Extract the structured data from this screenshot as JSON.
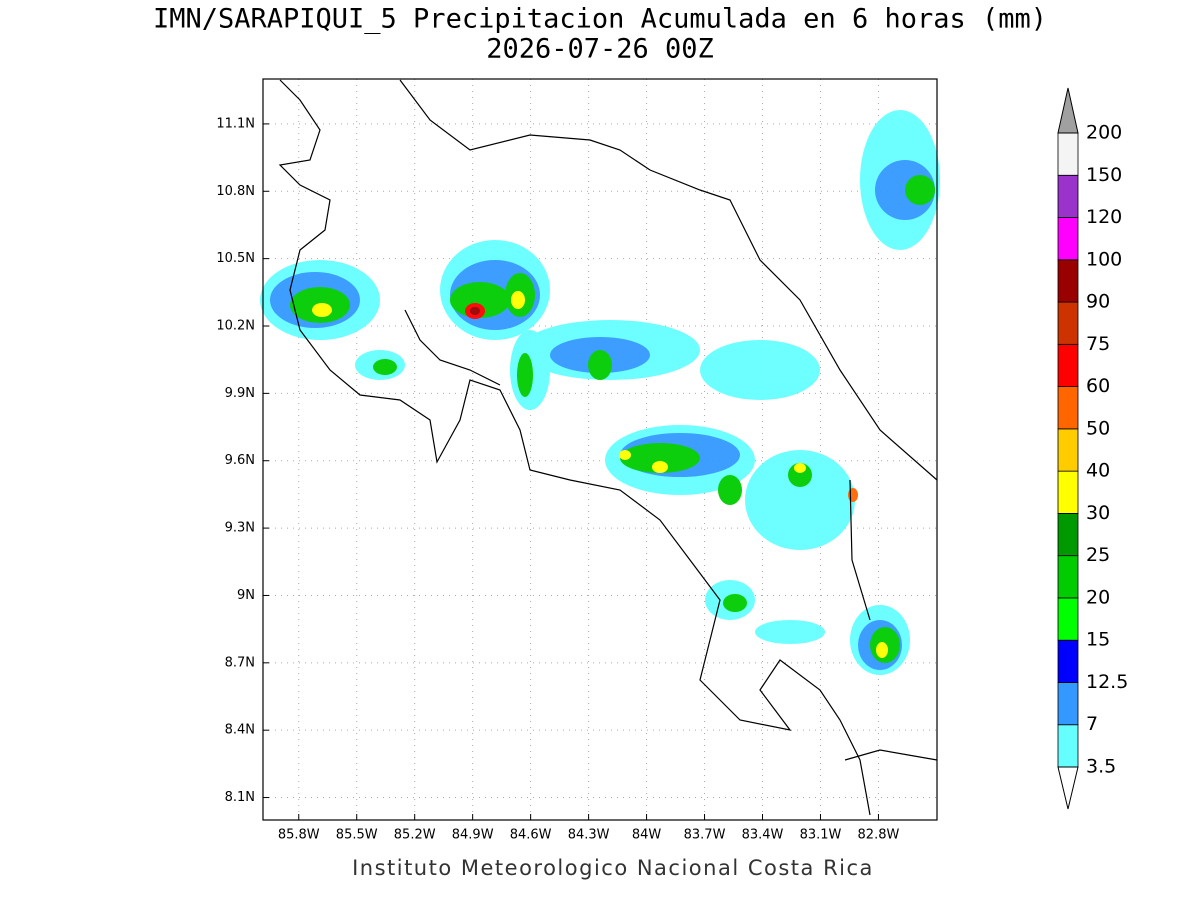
{
  "title": "IMN/SARAPIQUI_5 Precipitacion Acumulada en 6 horas (mm)",
  "subtitle": "2026-07-26 00Z",
  "footer": "Instituto Meteorologico Nacional Costa Rica",
  "map": {
    "xlim": [
      -85.985,
      -82.497
    ],
    "ylim": [
      8.0,
      11.3
    ],
    "xticks": [
      {
        "value": -85.8,
        "label": "85.8W"
      },
      {
        "value": -85.5,
        "label": "85.5W"
      },
      {
        "value": -85.2,
        "label": "85.2W"
      },
      {
        "value": -84.9,
        "label": "84.9W"
      },
      {
        "value": -84.6,
        "label": "84.6W"
      },
      {
        "value": -84.3,
        "label": "84.3W"
      },
      {
        "value": -84.0,
        "label": "84W"
      },
      {
        "value": -83.7,
        "label": "83.7W"
      },
      {
        "value": -83.4,
        "label": "83.4W"
      },
      {
        "value": -83.1,
        "label": "83.1W"
      },
      {
        "value": -82.8,
        "label": "82.8W"
      }
    ],
    "yticks": [
      {
        "value": 8.1,
        "label": "8.1N"
      },
      {
        "value": 8.4,
        "label": "8.4N"
      },
      {
        "value": 8.7,
        "label": "8.7N"
      },
      {
        "value": 9.0,
        "label": "9N"
      },
      {
        "value": 9.3,
        "label": "9.3N"
      },
      {
        "value": 9.6,
        "label": "9.6N"
      },
      {
        "value": 9.9,
        "label": "9.9N"
      },
      {
        "value": 10.2,
        "label": "10.2N"
      },
      {
        "value": 10.5,
        "label": "10.5N"
      },
      {
        "value": 10.8,
        "label": "10.8N"
      },
      {
        "value": 11.1,
        "label": "11.1N"
      }
    ],
    "grid": true
  },
  "colorbar": {
    "levels": [
      3.5,
      7,
      12.5,
      15,
      20,
      25,
      30,
      40,
      50,
      60,
      75,
      90,
      100,
      120,
      150,
      200
    ],
    "colors": [
      "#66ffff",
      "#3399ff",
      "#0000ff",
      "#00ff00",
      "#00cc00",
      "#009900",
      "#ffff00",
      "#ffcc00",
      "#ff6600",
      "#ff0000",
      "#cc3300",
      "#990000",
      "#ff00ff",
      "#9933cc",
      "#f4f4f4"
    ],
    "under_color": "#ffffff",
    "over_color": "#a0a0a0"
  }
}
